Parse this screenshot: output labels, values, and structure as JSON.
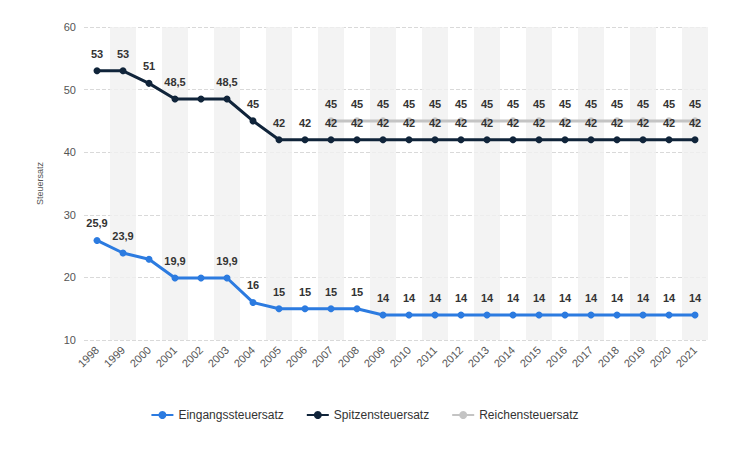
{
  "chart_data": {
    "type": "line",
    "y_label": "Steuersatz",
    "categories": [
      "1998",
      "1999",
      "2000",
      "2001",
      "2002",
      "2003",
      "2004",
      "2005",
      "2006",
      "2007",
      "2008",
      "2009",
      "2010",
      "2011",
      "2012",
      "2013",
      "2014",
      "2015",
      "2016",
      "2017",
      "2018",
      "2019",
      "2020",
      "2021"
    ],
    "series": [
      {
        "name": "Eingangssteuersatz",
        "color": "#2c7be0",
        "values": [
          25.9,
          23.9,
          22.9,
          19.9,
          19.9,
          19.9,
          16,
          15,
          15,
          15,
          15,
          14,
          14,
          14,
          14,
          14,
          14,
          14,
          14,
          14,
          14,
          14,
          14,
          14
        ],
        "value_labels": [
          "25,9",
          "23,9",
          null,
          "19,9",
          null,
          "19,9",
          "16",
          "15",
          "15",
          "15",
          "15",
          "14",
          "14",
          "14",
          "14",
          "14",
          "14",
          "14",
          "14",
          "14",
          "14",
          "14",
          "14",
          "14"
        ]
      },
      {
        "name": "Spitzensteuersatz",
        "color": "#10243a",
        "values": [
          53,
          53,
          51,
          48.5,
          48.5,
          48.5,
          45,
          42,
          42,
          42,
          42,
          42,
          42,
          42,
          42,
          42,
          42,
          42,
          42,
          42,
          42,
          42,
          42,
          42
        ],
        "value_labels": [
          "53",
          "53",
          "51",
          "48,5",
          null,
          "48,5",
          "45",
          "42",
          "42",
          "42",
          "42",
          "42",
          "42",
          "42",
          "42",
          "42",
          "42",
          "42",
          "42",
          "42",
          "42",
          "42",
          "42",
          "42"
        ]
      },
      {
        "name": "Reichensteuersatz",
        "color": "#c4c4c4",
        "values": [
          null,
          null,
          null,
          null,
          null,
          null,
          null,
          null,
          null,
          45,
          45,
          45,
          45,
          45,
          45,
          45,
          45,
          45,
          45,
          45,
          45,
          45,
          45,
          45
        ],
        "value_labels": [
          null,
          null,
          null,
          null,
          null,
          null,
          null,
          null,
          null,
          "45",
          "45",
          "45",
          "45",
          "45",
          "45",
          "45",
          "45",
          "45",
          "45",
          "45",
          "45",
          "45",
          "45",
          "45"
        ]
      }
    ],
    "ylim": [
      10,
      60
    ],
    "yticks": [
      10,
      20,
      30,
      40,
      50,
      60
    ],
    "grid": true,
    "legend": "bottom",
    "data_labels": true,
    "marker": "circle"
  }
}
